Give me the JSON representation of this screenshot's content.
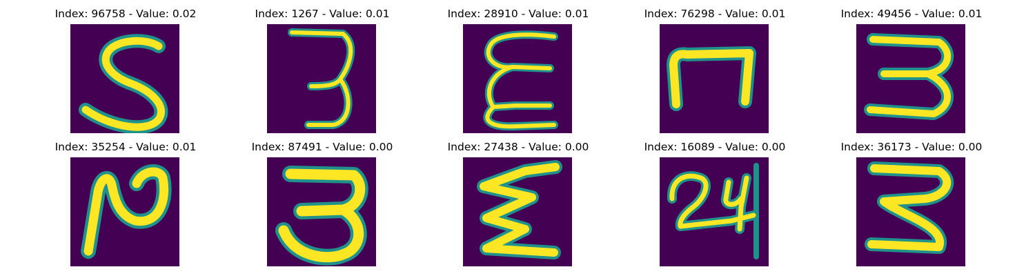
{
  "panels": [
    {
      "index_label": "Index: 96758 - Value: 0.02",
      "digit": "5",
      "icon": "digit-5-image"
    },
    {
      "index_label": "Index: 1267 - Value: 0.01",
      "digit": "3",
      "icon": "digit-3-image"
    },
    {
      "index_label": "Index: 28910 - Value: 0.01",
      "digit": "E",
      "icon": "digit-e-image"
    },
    {
      "index_label": "Index: 76298 - Value: 0.01",
      "digit": "n",
      "icon": "digit-n-image"
    },
    {
      "index_label": "Index: 49456 - Value: 0.01",
      "digit": "3",
      "icon": "digit-3-image"
    },
    {
      "index_label": "Index: 35254 - Value: 0.01",
      "digit": "2",
      "icon": "digit-2-image"
    },
    {
      "index_label": "Index: 87491 - Value: 0.00",
      "digit": "3",
      "icon": "digit-3-image"
    },
    {
      "index_label": "Index: 27438 - Value: 0.00",
      "digit": "E",
      "icon": "digit-e-image"
    },
    {
      "index_label": "Index: 16089 - Value: 0.00",
      "digit": "24",
      "icon": "digit-24-image"
    },
    {
      "index_label": "Index: 36173 - Value: 0.00",
      "digit": "3",
      "icon": "digit-3-image"
    }
  ],
  "colors": {
    "background": "#440154",
    "stroke_core": "#fde725",
    "stroke_edge": "#21918c"
  }
}
